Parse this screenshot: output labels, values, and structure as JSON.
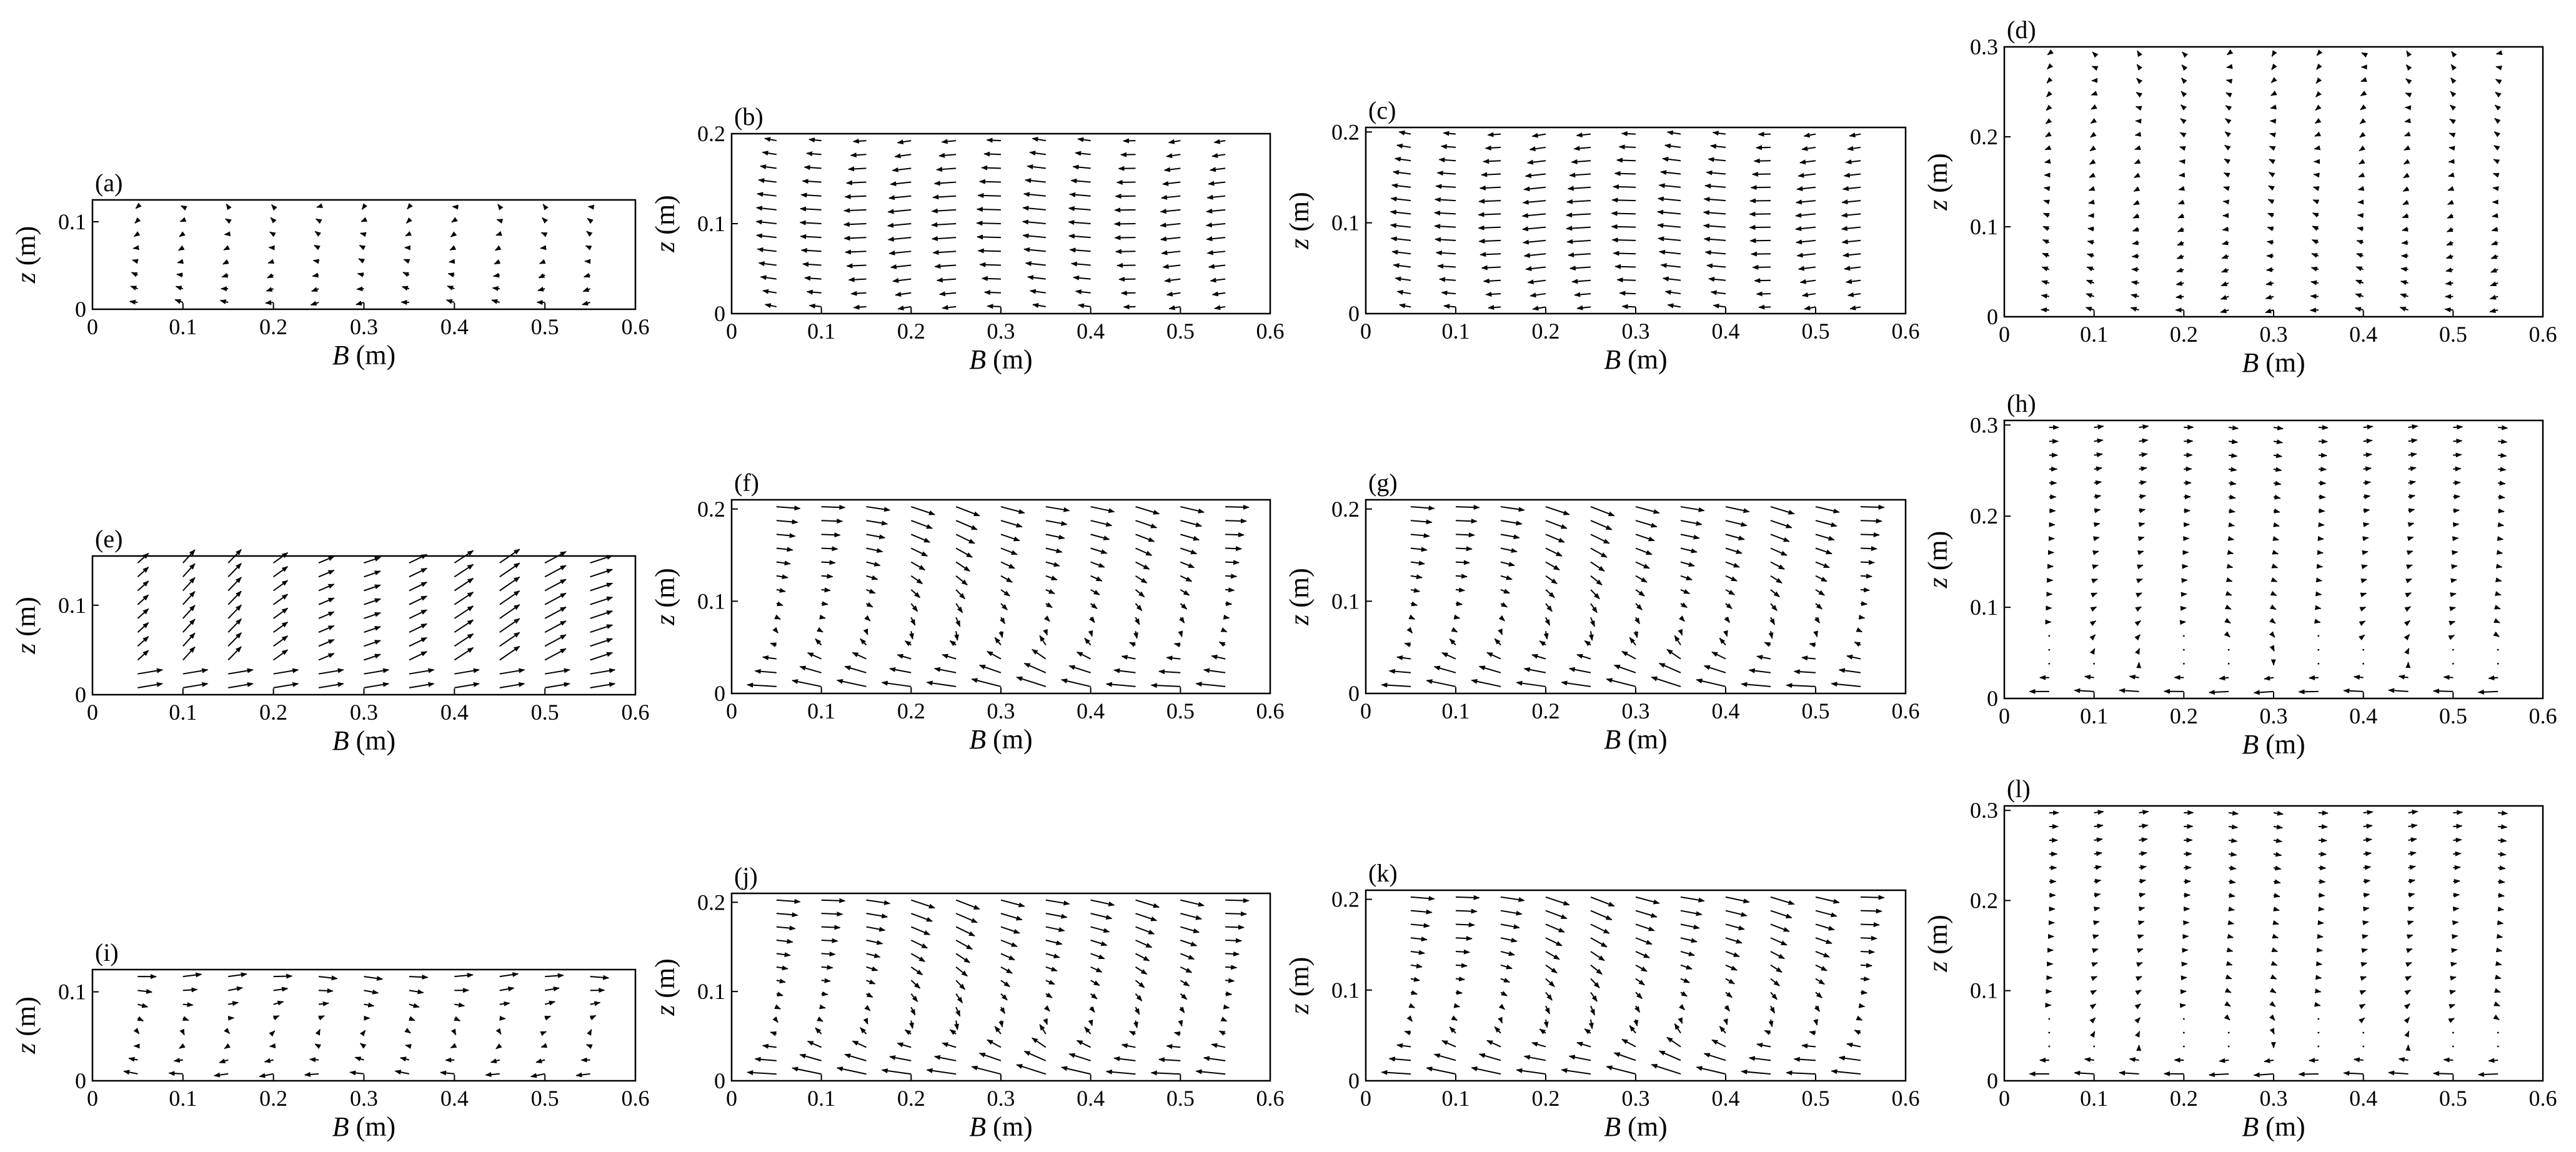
{
  "colors": {
    "axis": "#000000",
    "vector": "#000000",
    "background": "#ffffff"
  },
  "chart_data": [
    {
      "label": "(a)",
      "type": "vector",
      "xlabel_var": "B",
      "xlabel_unit": " (m)",
      "ylabel_var": "z",
      "ylabel_unit": " (m)",
      "xlim": [
        0,
        0.6
      ],
      "ylim": [
        0,
        0.125
      ],
      "xticks": [
        "0",
        "0.1",
        "0.2",
        "0.3",
        "0.4",
        "0.5",
        "0.6"
      ],
      "yticks": [
        "0",
        "0.1"
      ],
      "ytick_values": [
        0,
        0.1
      ],
      "stations": [
        0.05,
        0.1,
        0.15,
        0.2,
        0.25,
        0.3,
        0.35,
        0.4,
        0.45,
        0.5,
        0.55
      ],
      "flow": "weak"
    },
    {
      "label": "(b)",
      "type": "vector",
      "xlabel_var": "B",
      "xlabel_unit": " (m)",
      "ylabel_var": "z",
      "ylabel_unit": " (m)",
      "xlim": [
        0,
        0.6
      ],
      "ylim": [
        0,
        0.2
      ],
      "xticks": [
        "0",
        "0.1",
        "0.2",
        "0.3",
        "0.4",
        "0.5",
        "0.6"
      ],
      "yticks": [
        "0",
        "0.1",
        "0.2"
      ],
      "ytick_values": [
        0,
        0.1,
        0.2
      ],
      "stations": [
        0.05,
        0.1,
        0.15,
        0.2,
        0.25,
        0.3,
        0.35,
        0.4,
        0.45,
        0.5,
        0.55
      ],
      "flow": "left"
    },
    {
      "label": "(c)",
      "type": "vector",
      "xlabel_var": "B",
      "xlabel_unit": " (m)",
      "ylabel_var": "z",
      "ylabel_unit": " (m)",
      "xlim": [
        0,
        0.6
      ],
      "ylim": [
        0,
        0.205
      ],
      "xticks": [
        "0",
        "0.1",
        "0.2",
        "0.3",
        "0.4",
        "0.5",
        "0.6"
      ],
      "yticks": [
        "0",
        "0.1",
        "0.2"
      ],
      "ytick_values": [
        0,
        0.1,
        0.2
      ],
      "stations": [
        0.05,
        0.1,
        0.15,
        0.2,
        0.25,
        0.3,
        0.35,
        0.4,
        0.45,
        0.5,
        0.55
      ],
      "flow": "left"
    },
    {
      "label": "(d)",
      "type": "vector",
      "xlabel_var": "B",
      "xlabel_unit": " (m)",
      "ylabel_var": "z",
      "ylabel_unit": " (m)",
      "xlim": [
        0,
        0.6
      ],
      "ylim": [
        0,
        0.3
      ],
      "xticks": [
        "0",
        "0.1",
        "0.2",
        "0.3",
        "0.4",
        "0.5",
        "0.6"
      ],
      "yticks": [
        "0",
        "0.1",
        "0.2",
        "0.3"
      ],
      "ytick_values": [
        0,
        0.1,
        0.2,
        0.3
      ],
      "stations": [
        0.05,
        0.1,
        0.15,
        0.2,
        0.25,
        0.3,
        0.35,
        0.4,
        0.45,
        0.5,
        0.55
      ],
      "flow": "weak"
    },
    {
      "label": "(e)",
      "type": "vector",
      "xlabel_var": "B",
      "xlabel_unit": " (m)",
      "ylabel_var": "z",
      "ylabel_unit": " (m)",
      "xlim": [
        0,
        0.6
      ],
      "ylim": [
        0,
        0.155
      ],
      "xticks": [
        "0",
        "0.1",
        "0.2",
        "0.3",
        "0.4",
        "0.5",
        "0.6"
      ],
      "yticks": [
        "0",
        "0.1"
      ],
      "ytick_values": [
        0,
        0.1
      ],
      "stations": [
        0.05,
        0.1,
        0.15,
        0.2,
        0.25,
        0.3,
        0.35,
        0.4,
        0.45,
        0.5,
        0.55
      ],
      "flow": "right"
    },
    {
      "label": "(f)",
      "type": "vector",
      "xlabel_var": "B",
      "xlabel_unit": " (m)",
      "ylabel_var": "z",
      "ylabel_unit": " (m)",
      "xlim": [
        0,
        0.6
      ],
      "ylim": [
        0,
        0.21
      ],
      "xticks": [
        "0",
        "0.1",
        "0.2",
        "0.3",
        "0.4",
        "0.5",
        "0.6"
      ],
      "yticks": [
        "0",
        "0.1",
        "0.2"
      ],
      "ytick_values": [
        0,
        0.1,
        0.2
      ],
      "stations": [
        0.05,
        0.1,
        0.15,
        0.2,
        0.25,
        0.3,
        0.35,
        0.4,
        0.45,
        0.5,
        0.55
      ],
      "flow": "cell"
    },
    {
      "label": "(g)",
      "type": "vector",
      "xlabel_var": "B",
      "xlabel_unit": " (m)",
      "ylabel_var": "z",
      "ylabel_unit": " (m)",
      "xlim": [
        0,
        0.6
      ],
      "ylim": [
        0,
        0.21
      ],
      "xticks": [
        "0",
        "0.1",
        "0.2",
        "0.3",
        "0.4",
        "0.5",
        "0.6"
      ],
      "yticks": [
        "0",
        "0.1",
        "0.2"
      ],
      "ytick_values": [
        0,
        0.1,
        0.2
      ],
      "stations": [
        0.05,
        0.1,
        0.15,
        0.2,
        0.25,
        0.3,
        0.35,
        0.4,
        0.45,
        0.5,
        0.55
      ],
      "flow": "cell"
    },
    {
      "label": "(h)",
      "type": "vector",
      "xlabel_var": "B",
      "xlabel_unit": " (m)",
      "ylabel_var": "z",
      "ylabel_unit": " (m)",
      "xlim": [
        0,
        0.6
      ],
      "ylim": [
        0,
        0.305
      ],
      "xticks": [
        "0",
        "0.1",
        "0.2",
        "0.3",
        "0.4",
        "0.5",
        "0.6"
      ],
      "yticks": [
        "0",
        "0.1",
        "0.2",
        "0.3"
      ],
      "ytick_values": [
        0,
        0.1,
        0.2,
        0.3
      ],
      "stations": [
        0.05,
        0.1,
        0.15,
        0.2,
        0.25,
        0.3,
        0.35,
        0.4,
        0.45,
        0.5,
        0.55
      ],
      "flow": "cell-weak"
    },
    {
      "label": "(i)",
      "type": "vector",
      "xlabel_var": "B",
      "xlabel_unit": " (m)",
      "ylabel_var": "z",
      "ylabel_unit": " (m)",
      "xlim": [
        0,
        0.6
      ],
      "ylim": [
        0,
        0.125
      ],
      "xticks": [
        "0",
        "0.1",
        "0.2",
        "0.3",
        "0.4",
        "0.5",
        "0.6"
      ],
      "yticks": [
        "0",
        "0.1"
      ],
      "ytick_values": [
        0,
        0.1
      ],
      "stations": [
        0.05,
        0.1,
        0.15,
        0.2,
        0.25,
        0.3,
        0.35,
        0.4,
        0.45,
        0.5,
        0.55
      ],
      "flow": "left-low"
    },
    {
      "label": "(j)",
      "type": "vector",
      "xlabel_var": "B",
      "xlabel_unit": " (m)",
      "ylabel_var": "z",
      "ylabel_unit": " (m)",
      "xlim": [
        0,
        0.6
      ],
      "ylim": [
        0,
        0.21
      ],
      "xticks": [
        "0",
        "0.1",
        "0.2",
        "0.3",
        "0.4",
        "0.5",
        "0.6"
      ],
      "yticks": [
        "0",
        "0.1",
        "0.2"
      ],
      "ytick_values": [
        0,
        0.1,
        0.2
      ],
      "stations": [
        0.05,
        0.1,
        0.15,
        0.2,
        0.25,
        0.3,
        0.35,
        0.4,
        0.45,
        0.5,
        0.55
      ],
      "flow": "cell"
    },
    {
      "label": "(k)",
      "type": "vector",
      "xlabel_var": "B",
      "xlabel_unit": " (m)",
      "ylabel_var": "z",
      "ylabel_unit": " (m)",
      "xlim": [
        0,
        0.6
      ],
      "ylim": [
        0,
        0.21
      ],
      "xticks": [
        "0",
        "0.1",
        "0.2",
        "0.3",
        "0.4",
        "0.5",
        "0.6"
      ],
      "yticks": [
        "0",
        "0.1",
        "0.2"
      ],
      "ytick_values": [
        0,
        0.1,
        0.2
      ],
      "stations": [
        0.05,
        0.1,
        0.15,
        0.2,
        0.25,
        0.3,
        0.35,
        0.4,
        0.45,
        0.5,
        0.55
      ],
      "flow": "cell"
    },
    {
      "label": "(l)",
      "type": "vector",
      "xlabel_var": "B",
      "xlabel_unit": " (m)",
      "ylabel_var": "z",
      "ylabel_unit": " (m)",
      "xlim": [
        0,
        0.6
      ],
      "ylim": [
        0,
        0.305
      ],
      "xticks": [
        "0",
        "0.1",
        "0.2",
        "0.3",
        "0.4",
        "0.5",
        "0.6"
      ],
      "yticks": [
        "0",
        "0.1",
        "0.2",
        "0.3"
      ],
      "ytick_values": [
        0,
        0.1,
        0.2,
        0.3
      ],
      "stations": [
        0.05,
        0.1,
        0.15,
        0.2,
        0.25,
        0.3,
        0.35,
        0.4,
        0.45,
        0.5,
        0.55
      ],
      "flow": "cell-weak"
    }
  ]
}
